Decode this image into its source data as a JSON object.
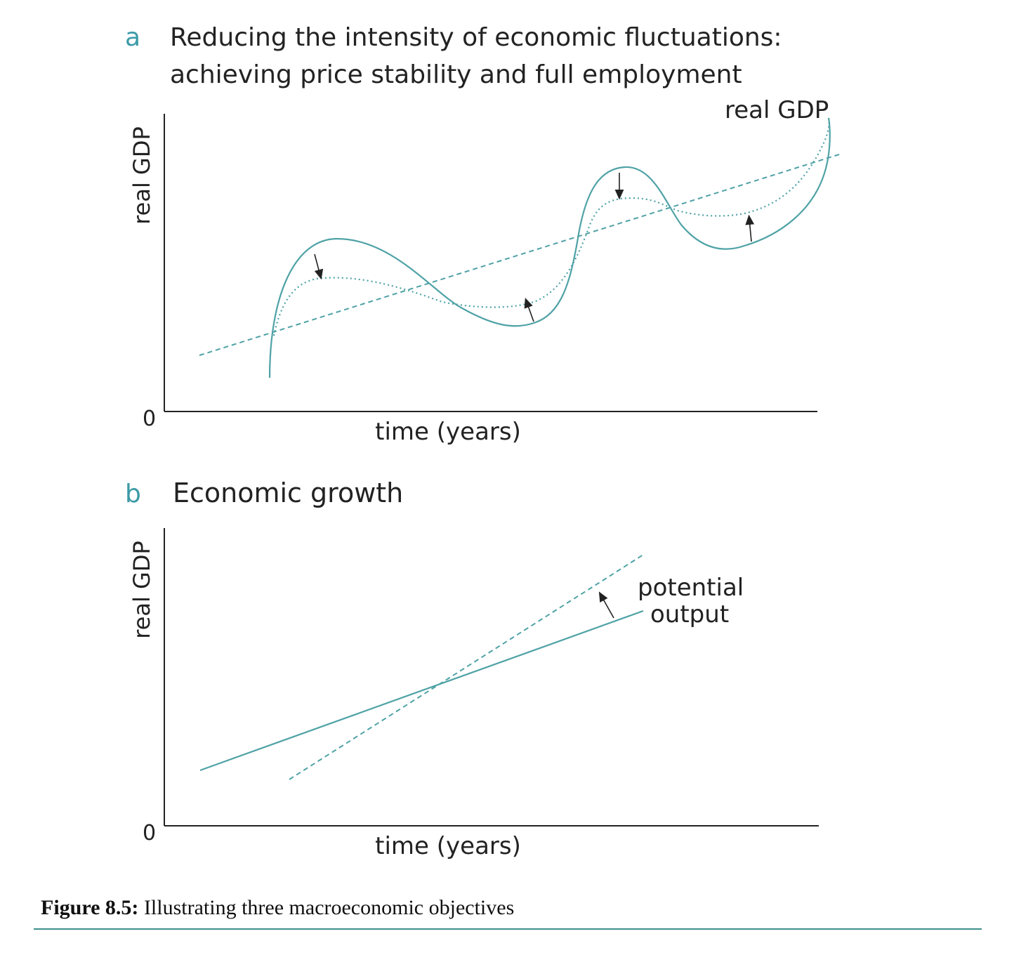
{
  "colors": {
    "curve": "#4fa2a6",
    "axis": "#222222",
    "letter": "#3a9aa6",
    "text": "#222222"
  },
  "panel_a": {
    "letter": "a",
    "title_line1": "Reducing the intensity of economic fluctuations:",
    "title_line2": "achieving price stability and full employment",
    "y_label": "real GDP",
    "x_label": "time (years)",
    "origin": "0",
    "curve_label": "real GDP"
  },
  "panel_b": {
    "letter": "b",
    "title": "Economic growth",
    "y_label": "real GDP",
    "x_label": "time (years)",
    "origin": "0",
    "line_label_1": "potential",
    "line_label_2": "output"
  },
  "caption": {
    "bold": "Figure 8.5:",
    "text": " Illustrating three macroeconomic objectives"
  }
}
